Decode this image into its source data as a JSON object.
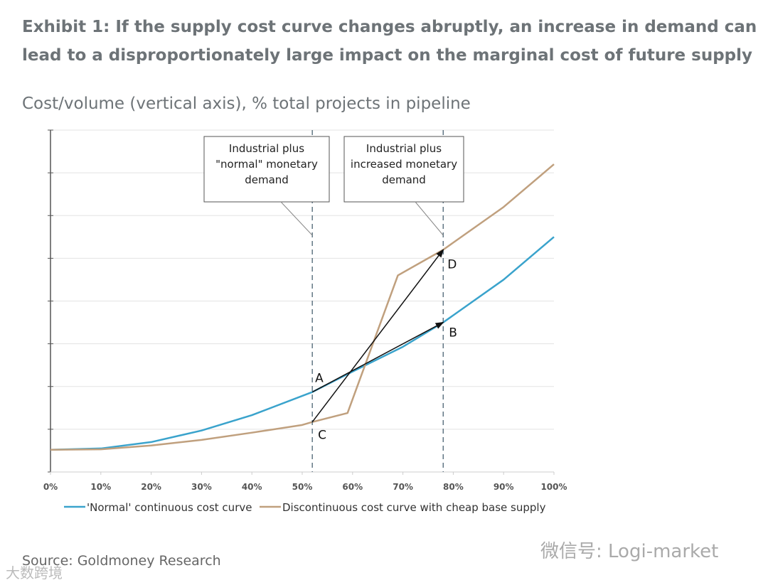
{
  "title": "Exhibit 1: If the supply cost curve changes abruptly, an increase in demand can lead to a disproportionately large impact on the marginal cost of future supply",
  "subtitle": "Cost/volume (vertical axis), % total projects in pipeline",
  "source": "Source: Goldmoney Research",
  "watermarks": {
    "left": "大数跨境",
    "right": "微信号: Logi-market"
  },
  "chart_data": {
    "type": "line",
    "xlabel": "% total projects in pipeline",
    "ylabel": "Cost/volume",
    "xlim": [
      0,
      100
    ],
    "ylim": [
      0,
      8
    ],
    "grid": true,
    "x_ticks": [
      "0%",
      "10%",
      "20%",
      "30%",
      "40%",
      "50%",
      "60%",
      "70%",
      "80%",
      "90%",
      "100%"
    ],
    "legend_position": "bottom",
    "series": [
      {
        "name": "'Normal' continuous cost curve",
        "color": "#3aa3cc",
        "x": [
          0,
          10,
          20,
          30,
          40,
          52,
          60,
          70,
          78,
          90,
          100
        ],
        "y": [
          0.52,
          0.55,
          0.7,
          0.97,
          1.33,
          1.87,
          2.35,
          2.93,
          3.5,
          4.5,
          5.5
        ]
      },
      {
        "name": "Discontinuous cost curve with cheap  base supply",
        "color": "#c0a07e",
        "x": [
          0,
          10,
          20,
          30,
          40,
          50,
          52,
          59,
          69,
          78,
          90,
          100
        ],
        "y": [
          0.52,
          0.53,
          0.62,
          0.75,
          0.92,
          1.1,
          1.17,
          1.38,
          4.6,
          5.2,
          6.2,
          7.2
        ]
      }
    ],
    "vlines": [
      {
        "x": 52,
        "label": "Industrial plus \"normal\" monetary demand"
      },
      {
        "x": 78,
        "label": "Industrial plus increased monetary demand"
      }
    ],
    "points": [
      {
        "name": "A",
        "x": 52,
        "y": 1.87
      },
      {
        "name": "B",
        "x": 78,
        "y": 3.5
      },
      {
        "name": "C",
        "x": 52,
        "y": 1.17
      },
      {
        "name": "D",
        "x": 78,
        "y": 5.2
      }
    ],
    "arrows": [
      [
        "A",
        "B"
      ],
      [
        "C",
        "D"
      ]
    ]
  }
}
